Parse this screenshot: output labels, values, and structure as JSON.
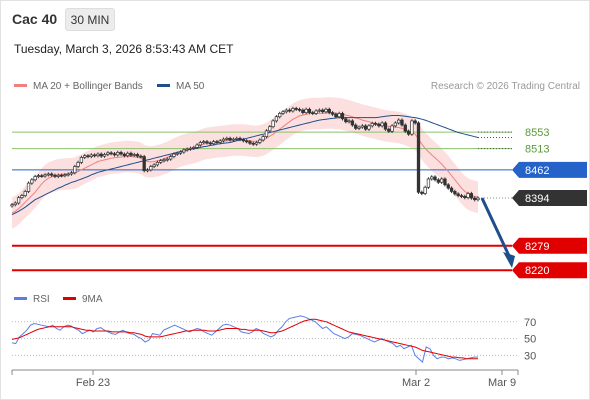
{
  "header": {
    "symbol": "Cac 40",
    "timeframe": "30 MIN"
  },
  "datetime": "Tuesday, March 3, 2026 8:53:43 AM CET",
  "legend": {
    "ma20": {
      "label": "MA 20 + Bollinger Bands",
      "color": "#f08080"
    },
    "ma50": {
      "label": "MA 50",
      "color": "#1f4e8c"
    }
  },
  "credit": "Research © 2026 Trading Central",
  "rsi_legend": {
    "rsi": {
      "label": "RSI",
      "color": "#5b7ee5"
    },
    "ma9": {
      "label": "9MA",
      "color": "#e00000"
    }
  },
  "chart_data": [
    {
      "type": "candlestick",
      "title": "Cac 40",
      "ylim": [
        8182,
        8640
      ],
      "x_labels": [
        "Feb 23",
        "Mar 2",
        "Mar 9"
      ],
      "last_price": 8394,
      "levels": [
        {
          "value": 8553,
          "label": "8553",
          "style": "resistance-green"
        },
        {
          "value": 8513,
          "label": "8513",
          "style": "resistance-green"
        },
        {
          "value": 8462,
          "label": "8462",
          "style": "pivot-blue"
        },
        {
          "value": 8394,
          "label": "8394",
          "style": "last-price"
        },
        {
          "value": 8279,
          "label": "8279",
          "style": "support-red"
        },
        {
          "value": 8220,
          "label": "8220",
          "style": "support-red"
        }
      ],
      "forecast_arrow": {
        "from": 8394,
        "to": 8240
      },
      "closes": [
        8378,
        8382,
        8395,
        8400,
        8410,
        8430,
        8438,
        8446,
        8448,
        8447,
        8450,
        8452,
        8449,
        8446,
        8449,
        8448,
        8450,
        8452,
        8455,
        8470,
        8480,
        8492,
        8496,
        8494,
        8498,
        8496,
        8500,
        8495,
        8499,
        8503,
        8501,
        8498,
        8504,
        8500,
        8496,
        8502,
        8497,
        8499,
        8495,
        8494,
        8460,
        8462,
        8470,
        8474,
        8480,
        8484,
        8486,
        8488,
        8494,
        8500,
        8502,
        8505,
        8510,
        8512,
        8514,
        8516,
        8522,
        8528,
        8530,
        8527,
        8525,
        8530,
        8528,
        8532,
        8536,
        8538,
        8534,
        8536,
        8538,
        8535,
        8532,
        8530,
        8526,
        8524,
        8528,
        8534,
        8542,
        8556,
        8566,
        8580,
        8590,
        8598,
        8602,
        8606,
        8604,
        8610,
        8608,
        8606,
        8600,
        8608,
        8600,
        8598,
        8604,
        8606,
        8602,
        8608,
        8600,
        8596,
        8590,
        8598,
        8585,
        8578,
        8580,
        8570,
        8562,
        8565,
        8568,
        8560,
        8568,
        8574,
        8572,
        8568,
        8575,
        8560,
        8555,
        8568,
        8575,
        8582,
        8570,
        8555,
        8548,
        8580,
        8575,
        8408,
        8405,
        8420,
        8440,
        8445,
        8438,
        8432,
        8440,
        8426,
        8418,
        8410,
        8404,
        8400,
        8398,
        8395,
        8405,
        8394,
        8390,
        8394
      ],
      "ma20": [
        8358,
        8362,
        8368,
        8376,
        8384,
        8392,
        8400,
        8408,
        8418,
        8428,
        8436,
        8442,
        8445,
        8448,
        8450,
        8451,
        8452,
        8452,
        8453,
        8454,
        8458,
        8462,
        8466,
        8470,
        8474,
        8478,
        8482,
        8484,
        8486,
        8488,
        8490,
        8491,
        8492,
        8493,
        8494,
        8494,
        8494,
        8493,
        8492,
        8490,
        8484,
        8482,
        8481,
        8482,
        8484,
        8486,
        8489,
        8492,
        8496,
        8500,
        8504,
        8507,
        8510,
        8512,
        8514,
        8516,
        8518,
        8521,
        8524,
        8526,
        8527,
        8528,
        8529,
        8530,
        8531,
        8532,
        8533,
        8534,
        8534,
        8534,
        8534,
        8533,
        8532,
        8531,
        8531,
        8532,
        8534,
        8538,
        8543,
        8548,
        8554,
        8560,
        8566,
        8572,
        8578,
        8584,
        8588,
        8592,
        8594,
        8596,
        8597,
        8598,
        8598,
        8598,
        8598,
        8599,
        8599,
        8599,
        8598,
        8598,
        8596,
        8594,
        8592,
        8590,
        8587,
        8585,
        8582,
        8580,
        8578,
        8576,
        8574,
        8572,
        8570,
        8568,
        8567,
        8566,
        8565,
        8564,
        8562,
        8559,
        8556,
        8552,
        8548,
        8536,
        8524,
        8514,
        8506,
        8498,
        8491,
        8484,
        8476,
        8467,
        8458,
        8448,
        8438,
        8428,
        8418,
        8410,
        8404,
        8400,
        8398,
        8396
      ],
      "ma50": [
        8354,
        8358,
        8362,
        8367,
        8372,
        8378,
        8384,
        8390,
        8394,
        8398,
        8402,
        8406,
        8410,
        8414,
        8418,
        8421,
        8425,
        8428,
        8432,
        8434,
        8437,
        8440,
        8443,
        8446,
        8450,
        8453,
        8456,
        8458,
        8460,
        8462,
        8464,
        8466,
        8468,
        8470,
        8472,
        8474,
        8476,
        8478,
        8480,
        8482,
        8484,
        8486,
        8488,
        8490,
        8492,
        8494,
        8496,
        8498,
        8500,
        8502,
        8504,
        8506,
        8508,
        8510,
        8512,
        8513,
        8514,
        8516,
        8518,
        8519,
        8521,
        8522,
        8524,
        8525,
        8526,
        8527,
        8528,
        8530,
        8532,
        8534,
        8536,
        8538,
        8540,
        8542,
        8544,
        8546,
        8548,
        8550,
        8552,
        8554,
        8556,
        8558,
        8560,
        8562,
        8564,
        8566,
        8568,
        8570,
        8572,
        8574,
        8576,
        8578,
        8580,
        8582,
        8583,
        8584,
        8585,
        8586,
        8587,
        8588,
        8588,
        8588,
        8588,
        8588,
        8588,
        8588,
        8588,
        8588,
        8588,
        8588,
        8588,
        8589,
        8590,
        8591,
        8592,
        8593,
        8593,
        8593,
        8592,
        8591,
        8590,
        8589,
        8588,
        8586,
        8584,
        8582,
        8579,
        8576,
        8573,
        8570,
        8567,
        8564,
        8561,
        8558,
        8555,
        8552,
        8550,
        8548,
        8546,
        8544,
        8542,
        8540
      ],
      "bollinger_upper_offset": 38
    },
    {
      "type": "line",
      "title": "RSI",
      "ylim": [
        15,
        90
      ],
      "y_ticks": [
        70,
        50,
        30
      ],
      "series": [
        {
          "name": "RSI",
          "values": [
            45,
            44,
            52,
            56,
            60,
            66,
            68,
            67,
            66,
            65,
            64,
            66,
            62,
            60,
            64,
            66,
            65,
            62,
            60,
            56,
            58,
            60,
            58,
            62,
            63,
            60,
            58,
            56,
            55,
            58,
            60,
            57,
            56,
            55,
            52,
            50,
            46,
            48,
            56,
            55,
            54,
            60,
            62,
            64,
            66,
            64,
            62,
            60,
            58,
            60,
            62,
            61,
            58,
            56,
            54,
            58,
            62,
            66,
            67,
            66,
            64,
            62,
            58,
            57,
            56,
            58,
            62,
            60,
            56,
            54,
            52,
            54,
            60,
            64,
            70,
            74,
            75,
            76,
            77,
            76,
            74,
            72,
            70,
            66,
            62,
            64,
            60,
            56,
            54,
            52,
            50,
            52,
            56,
            55,
            54,
            52,
            50,
            48,
            46,
            48,
            50,
            48,
            46,
            44,
            40,
            42,
            38,
            40,
            42,
            30,
            26,
            22,
            40,
            38,
            30,
            26,
            28,
            28,
            26,
            27,
            26,
            24,
            25,
            26,
            27,
            28,
            28
          ]
        },
        {
          "name": "9MA",
          "values": [
            49,
            50,
            51,
            53,
            55,
            57,
            59,
            61,
            62,
            63,
            64,
            64,
            64,
            64,
            64,
            64,
            64,
            63,
            62,
            61,
            60,
            60,
            59,
            59,
            59,
            59,
            59,
            58,
            58,
            58,
            58,
            58,
            57,
            57,
            56,
            55,
            53,
            52,
            52,
            52,
            52,
            53,
            54,
            55,
            56,
            57,
            58,
            59,
            59,
            60,
            60,
            60,
            60,
            59,
            59,
            59,
            60,
            61,
            62,
            62,
            62,
            62,
            61,
            61,
            60,
            60,
            60,
            60,
            59,
            58,
            57,
            57,
            58,
            59,
            61,
            63,
            65,
            67,
            69,
            71,
            72,
            73,
            73,
            72,
            71,
            70,
            68,
            66,
            64,
            62,
            60,
            58,
            57,
            56,
            55,
            54,
            53,
            52,
            51,
            50,
            49,
            48,
            47,
            46,
            45,
            44,
            43,
            42,
            41,
            40,
            38,
            36,
            35,
            34,
            33,
            32,
            31,
            30,
            29,
            28,
            28,
            27,
            27,
            26,
            26,
            26,
            26
          ]
        }
      ],
      "x_labels": [
        "Feb 23",
        "Mar 2",
        "Mar 9"
      ]
    }
  ]
}
